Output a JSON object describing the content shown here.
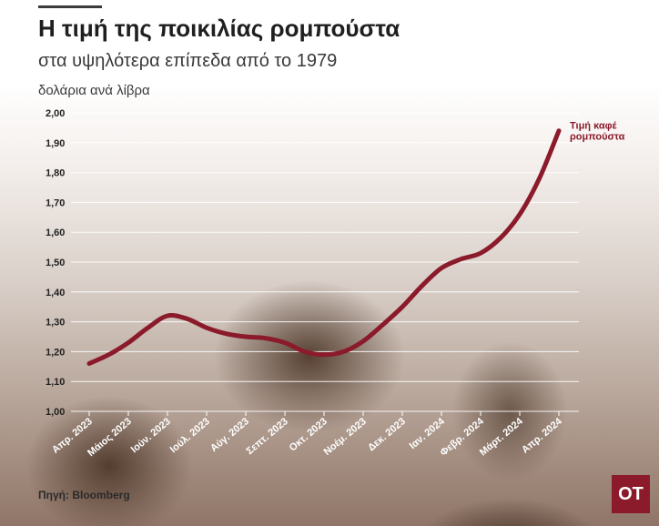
{
  "header": {
    "title": "Η τιμή της ποικιλίας ρομπούστα",
    "subtitle": "στα υψηλότερα επίπεδα από το 1979",
    "unit_label": "δολάρια ανά λίβρα"
  },
  "footer": {
    "source": "Πηγή: Bloomberg",
    "logo_text": "OT"
  },
  "colors": {
    "line": "#8b1a2b",
    "grid": "#ffffff",
    "logo_bg": "#8b1a2b"
  },
  "chart_data": {
    "type": "line",
    "title": "Η τιμή της ποικιλίας ρομπούστα",
    "subtitle": "στα υψηλότερα επίπεδα από το 1979",
    "ylabel": "δολάρια ανά λίβρα",
    "ylim": [
      1.0,
      2.0
    ],
    "yticks": [
      "1,00",
      "1,10",
      "1,20",
      "1,30",
      "1,40",
      "1,50",
      "1,60",
      "1,70",
      "1,80",
      "1,90",
      "2,00"
    ],
    "ytick_values": [
      1.0,
      1.1,
      1.2,
      1.3,
      1.4,
      1.5,
      1.6,
      1.7,
      1.8,
      1.9,
      2.0
    ],
    "categories": [
      "Απρ. 2023",
      "Μάιος 2023",
      "Ιούν. 2023",
      "Ιούλ. 2023",
      "Αύγ. 2023",
      "Σεπτ. 2023",
      "Οκτ. 2023",
      "Νοέμ. 2023",
      "Δεκ. 2023",
      "Ιαν. 2024",
      "Φεβρ. 2024",
      "Μάρτ. 2024",
      "Απρ. 2024"
    ],
    "grid": true,
    "series": [
      {
        "name": "Τιμή καφέ ρομπούστα",
        "label_lines": [
          "Τιμή καφέ",
          "ρομπούστα"
        ],
        "x": [
          0,
          0.5,
          1,
          1.5,
          2,
          2.5,
          3,
          3.5,
          4,
          4.5,
          5,
          5.5,
          6,
          6.5,
          7,
          7.5,
          8,
          8.5,
          9,
          9.5,
          10,
          10.5,
          11,
          11.5,
          12
        ],
        "values": [
          1.16,
          1.19,
          1.23,
          1.28,
          1.32,
          1.31,
          1.28,
          1.26,
          1.25,
          1.245,
          1.23,
          1.2,
          1.19,
          1.2,
          1.235,
          1.29,
          1.35,
          1.42,
          1.48,
          1.51,
          1.53,
          1.58,
          1.66,
          1.78,
          1.94
        ]
      }
    ]
  }
}
